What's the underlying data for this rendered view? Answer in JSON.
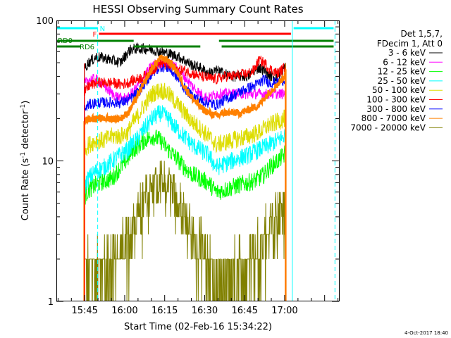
{
  "chart_data": {
    "type": "line",
    "title": "HESSI Observing Summary Count Rates",
    "xlabel": "Start Time (02-Feb-16 15:34:22)",
    "ylabel_main": "Count Rate (s",
    "ylabel_sup1": "-1",
    "ylabel_mid": " detector",
    "ylabel_sup2": "-1",
    "ylabel_end": ")",
    "footer": "4-Oct-2017 18:40",
    "x_unit": "minutes since 15:34:22",
    "x_range": [
      0,
      106
    ],
    "xlim_minutes": [
      0,
      106
    ],
    "ylim": [
      1,
      100
    ],
    "yscale": "log",
    "xticks": [
      {
        "label": "15:45",
        "min": 10.63
      },
      {
        "label": "16:00",
        "min": 25.63
      },
      {
        "label": "16:15",
        "min": 40.63
      },
      {
        "label": "16:30",
        "min": 55.63
      },
      {
        "label": "16:45",
        "min": 70.63
      },
      {
        "label": "17:00",
        "min": 85.63
      }
    ],
    "yticks": [
      {
        "label": "1",
        "value": 1
      },
      {
        "label": "10",
        "value": 10
      },
      {
        "label": "100",
        "value": 100
      }
    ],
    "legend_placement": "right",
    "legend_header": [
      "Det 1,5,7,",
      "FDecim 1, Att 0"
    ],
    "legend": [
      {
        "name": "3 - 6 keV",
        "color": "#000000"
      },
      {
        "name": "6 - 12 keV",
        "color": "#ff00ff"
      },
      {
        "name": "12 - 25 keV",
        "color": "#00ff00"
      },
      {
        "name": "25 - 50 keV",
        "color": "#00ffff"
      },
      {
        "name": "50 - 100 keV",
        "color": "#dddd00"
      },
      {
        "name": "100 - 300 keV",
        "color": "#ff0000"
      },
      {
        "name": "300 - 800 keV",
        "color": "#0000ff"
      },
      {
        "name": "800 - 7000 keV",
        "color": "#ff8000"
      },
      {
        "name": "7000 - 20000 keV",
        "color": "#808000"
      }
    ],
    "time_points_min": [
      10.5,
      12,
      15,
      18,
      21,
      24,
      27,
      28,
      30,
      33,
      36,
      39,
      42,
      45,
      48,
      51,
      54,
      57,
      60,
      63,
      66,
      69,
      72,
      74,
      76,
      78,
      80,
      83,
      85.5,
      86
    ],
    "series": [
      {
        "name": "3 - 6 keV",
        "color": "#000000",
        "noise": 0.03,
        "values": [
          45,
          50,
          55,
          54,
          52,
          50,
          60,
          62,
          63,
          63,
          62,
          60,
          58,
          56,
          52,
          48,
          46,
          42,
          44,
          42,
          40,
          40,
          40,
          44,
          46,
          44,
          40,
          40,
          46,
          48
        ]
      },
      {
        "name": "6 - 12 keV",
        "color": "#ff00ff",
        "noise": 0.03,
        "values": [
          35,
          38,
          38,
          34,
          30,
          28,
          28,
          30,
          33,
          40,
          48,
          50,
          50,
          46,
          40,
          34,
          30,
          28,
          30,
          30,
          30,
          30,
          30,
          30,
          30,
          30,
          30,
          30,
          30,
          30
        ]
      },
      {
        "name": "12 - 25 keV",
        "color": "#00ff00",
        "noise": 0.05,
        "values": [
          5.5,
          6.2,
          6.8,
          7.2,
          7.5,
          9.0,
          10.5,
          11.5,
          12.5,
          14,
          15,
          14,
          12,
          10.5,
          9,
          8,
          7.5,
          7.0,
          6.0,
          6.2,
          6.5,
          6.8,
          7.0,
          7.2,
          7.5,
          8,
          9,
          10,
          11,
          12
        ]
      },
      {
        "name": "25 - 50 keV",
        "color": "#00ffff",
        "noise": 0.05,
        "values": [
          6.5,
          7.5,
          8.5,
          9,
          10,
          11,
          12,
          13,
          14,
          17,
          20,
          22,
          20,
          17,
          15,
          13,
          12,
          11,
          9,
          9.5,
          10,
          10.5,
          11,
          11.5,
          12,
          12.5,
          13,
          14,
          15,
          16
        ]
      },
      {
        "name": "50 - 100 keV",
        "color": "#dddd00",
        "noise": 0.05,
        "values": [
          12,
          13,
          14,
          14,
          15,
          15,
          16,
          18,
          20,
          25,
          30,
          32,
          30,
          26,
          22,
          19,
          17,
          15,
          13,
          13.5,
          14,
          14.5,
          15,
          15.5,
          16,
          17,
          18,
          19,
          20,
          20
        ]
      },
      {
        "name": "100 - 300 keV",
        "color": "#ff0000",
        "noise": 0.03,
        "values": [
          30,
          34,
          36,
          36,
          36,
          35,
          36,
          37,
          38,
          40,
          44,
          50,
          48,
          45,
          44,
          42,
          40,
          39,
          38,
          40,
          40,
          41,
          42,
          44,
          52,
          50,
          45,
          42,
          46,
          50
        ]
      },
      {
        "name": "300 - 800 keV",
        "color": "#0000ff",
        "noise": 0.03,
        "values": [
          23,
          25,
          26,
          26,
          26,
          26,
          27,
          28,
          30,
          35,
          42,
          47,
          46,
          40,
          33,
          29,
          27,
          26,
          25,
          27,
          29,
          31,
          33,
          34,
          36,
          38,
          36,
          36,
          38,
          40
        ]
      },
      {
        "name": "800 - 7000 keV",
        "color": "#ff8000",
        "noise": 0.02,
        "values": [
          19,
          20,
          20,
          20,
          20,
          20,
          22,
          24,
          28,
          36,
          46,
          54,
          52,
          44,
          34,
          28,
          24,
          22,
          21,
          22,
          22,
          22,
          23,
          24,
          25,
          28,
          31,
          35,
          40,
          46
        ]
      },
      {
        "name": "7000 - 20000 keV",
        "color": "#808000",
        "noise": 0.14,
        "values": [
          1.7,
          1.8,
          1.8,
          1.9,
          2.0,
          2.3,
          3.0,
          3.5,
          4.2,
          5.2,
          6.0,
          6.8,
          6.3,
          5.2,
          4.2,
          3.2,
          2.5,
          2.0,
          1.6,
          1.6,
          1.7,
          1.8,
          2.0,
          2.2,
          2.5,
          3.0,
          3.5,
          4.0,
          4.5,
          5.0
        ]
      }
    ],
    "annotations": {
      "N_label": "N",
      "F_label": "F",
      "RD0_label": "RD0",
      "RD6_label": "RD6",
      "cyan_color": "#00ffff",
      "red_color": "#ff0000",
      "green_color": "#008000",
      "orange_color": "#ff8000",
      "night_bars_min": [
        [
          0,
          15.5
        ],
        [
          89,
          104
        ]
      ],
      "flare_bar_min": [
        16,
        88
      ],
      "rd0_bars_min": [
        [
          0,
          29
        ],
        [
          61,
          104
        ]
      ],
      "rd6_bars_min": [
        [
          0,
          9
        ],
        [
          29,
          54
        ],
        [
          62,
          104
        ]
      ],
      "data_window_min": [
        10.5,
        86
      ],
      "dashed_lines_min": [
        15.5,
        104.5
      ],
      "solid_lines_min": [
        88.5
      ]
    }
  }
}
